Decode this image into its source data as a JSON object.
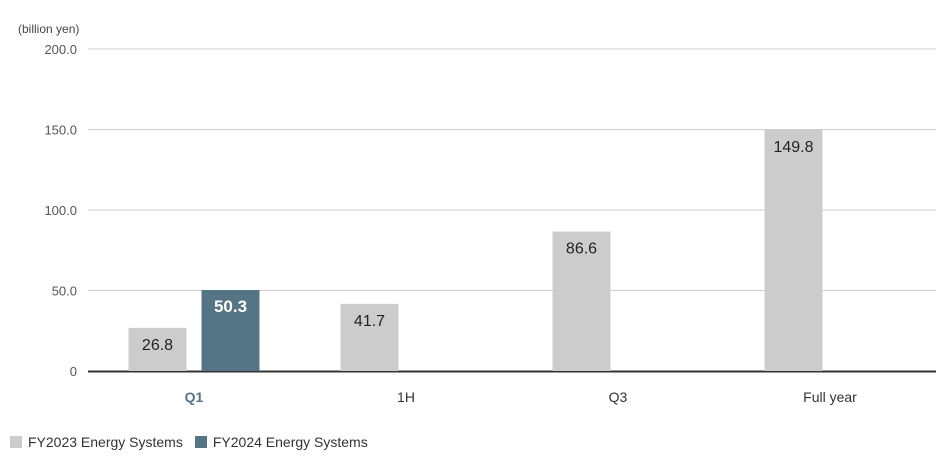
{
  "chart_data": {
    "type": "bar",
    "unit_label": "(billion yen)",
    "categories": [
      "Q1",
      "1H",
      "Q3",
      "Full year"
    ],
    "highlight_category": "Q1",
    "ylim": [
      0,
      200
    ],
    "yticks": [
      0,
      50,
      100,
      150,
      200
    ],
    "ytick_labels": [
      "0",
      "50.0",
      "100.0",
      "150.0",
      "200.0"
    ],
    "grid": true,
    "legend_position": "bottom-left",
    "series": [
      {
        "name": "FY2023 Energy Systems",
        "color": "#cccccc",
        "values": [
          26.8,
          41.7,
          86.6,
          149.8
        ],
        "labels": [
          "26.8",
          "41.7",
          "86.6",
          "149.8"
        ]
      },
      {
        "name": "FY2024 Energy Systems",
        "color": "#557585",
        "values": [
          50.3,
          null,
          null,
          null
        ],
        "labels": [
          "50.3",
          null,
          null,
          null
        ]
      }
    ]
  }
}
